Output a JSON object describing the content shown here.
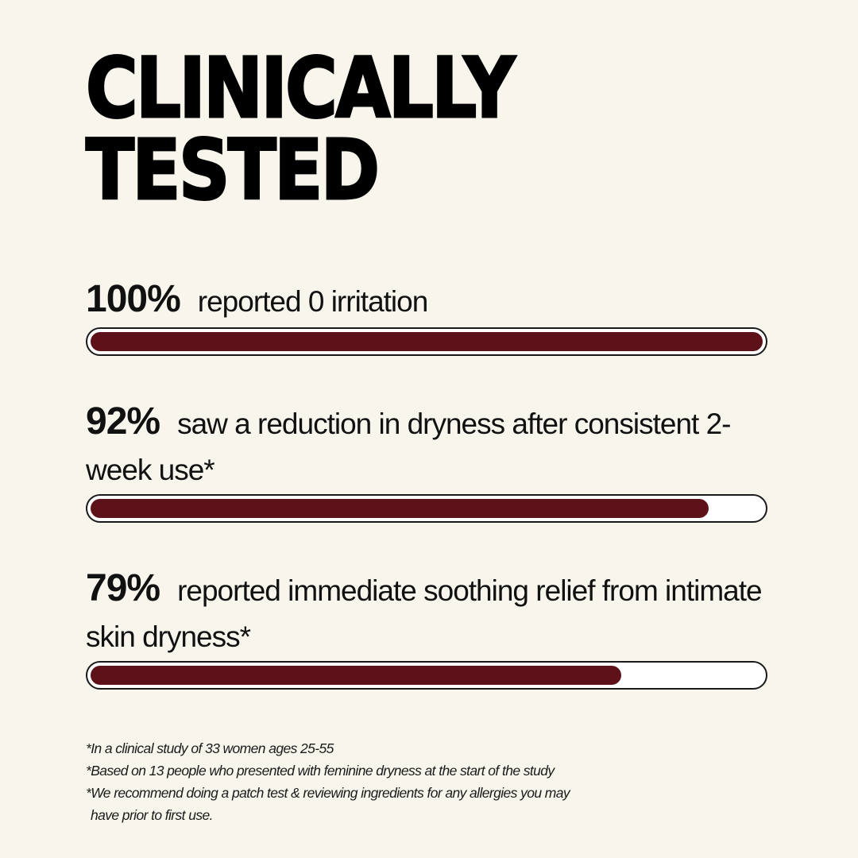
{
  "title": {
    "line1": "CLINICALLY",
    "line2": "TESTED"
  },
  "stats": [
    {
      "value": "100%",
      "text": "reported 0 irritation",
      "fill_fraction": 1.0
    },
    {
      "value": "92%",
      "text": "saw a reduction in dryness after consistent 2-week use*",
      "fill_fraction": 0.92
    },
    {
      "value": "79%",
      "text": "reported immediate soothing relief from intimate skin dryness*",
      "fill_fraction": 0.79
    }
  ],
  "footnotes": [
    "*In a clinical study of 33 women ages 25-55",
    "*Based on 13 people who presented with feminine dryness at the start of the study",
    "*We recommend doing a patch test & reviewing ingredients for any allergies you may",
    "have prior to first use."
  ],
  "colors": {
    "background": "#f8f6ec",
    "bar_fill": "#5c1218",
    "bar_track": "#ffffff",
    "text": "#111111"
  }
}
